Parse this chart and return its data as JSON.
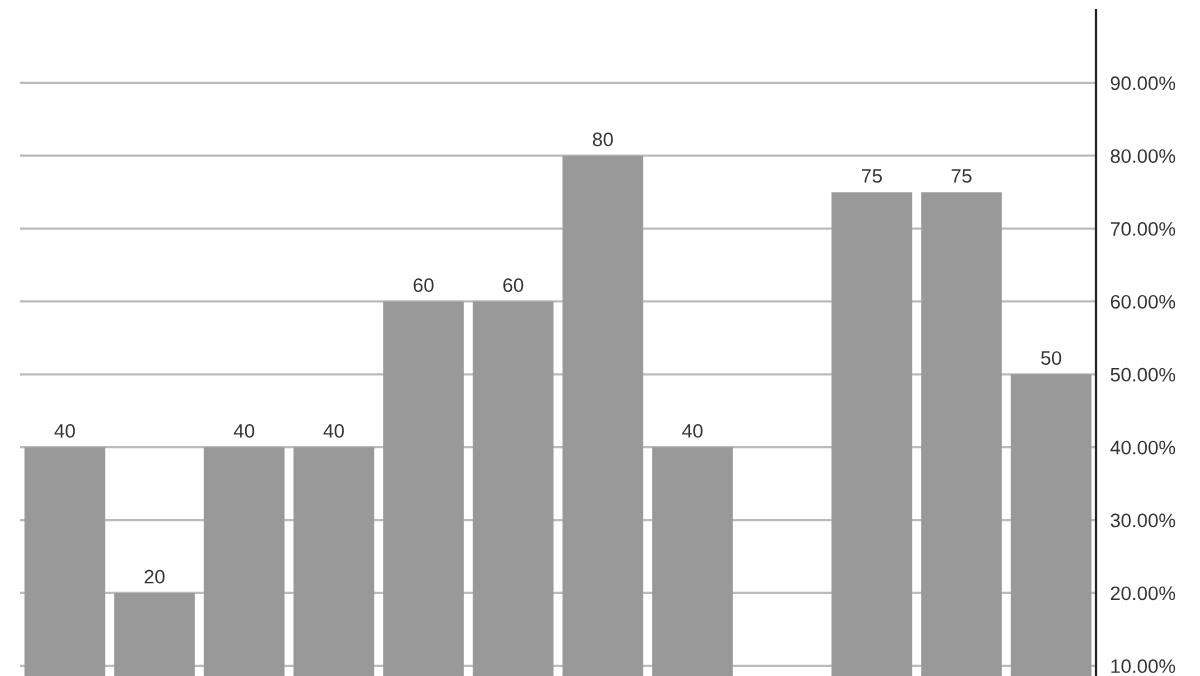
{
  "chart_data": {
    "type": "bar",
    "categories": [
      null,
      null,
      null,
      null,
      null,
      null,
      null,
      null,
      null,
      null,
      null,
      null
    ],
    "values": [
      40,
      20,
      40,
      40,
      60,
      60,
      80,
      40,
      null,
      75,
      75,
      50
    ],
    "color": "#999999",
    "ylim": [
      8.6,
      100
    ],
    "yticks": [
      {
        "value": 10,
        "label": "10.00%"
      },
      {
        "value": 20,
        "label": "20.00%"
      },
      {
        "value": 30,
        "label": "30.00%"
      },
      {
        "value": 40,
        "label": "40.00%"
      },
      {
        "value": 50,
        "label": "50.00%"
      },
      {
        "value": 60,
        "label": "60.00%"
      },
      {
        "value": 70,
        "label": "70.00%"
      },
      {
        "value": 80,
        "label": "80.00%"
      },
      {
        "value": 90,
        "label": "90.00%"
      }
    ],
    "grid": "y",
    "data_labels": true
  }
}
